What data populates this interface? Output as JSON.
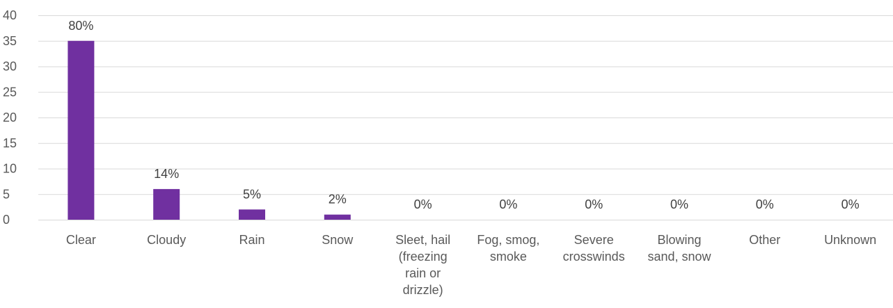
{
  "chart_data": {
    "type": "bar",
    "title": "",
    "xlabel": "",
    "ylabel": "",
    "ylim": [
      0,
      40
    ],
    "ytick_step": 5,
    "grid": true,
    "legend": "none",
    "categories": [
      "Clear",
      "Cloudy",
      "Rain",
      "Snow",
      "Sleet, hail (freezing rain or drizzle)",
      "Fog, smog, smoke",
      "Severe crosswinds",
      "Blowing sand, snow",
      "Other",
      "Unknown"
    ],
    "category_lines": [
      [
        "Clear"
      ],
      [
        "Cloudy"
      ],
      [
        "Rain"
      ],
      [
        "Snow"
      ],
      [
        "Sleet, hail",
        "(freezing",
        "rain or",
        "drizzle)"
      ],
      [
        "Fog, smog,",
        "smoke"
      ],
      [
        "Severe",
        "crosswinds"
      ],
      [
        "Blowing",
        "sand, snow"
      ],
      [
        "Other"
      ],
      [
        "Unknown"
      ]
    ],
    "values": [
      35,
      6,
      2,
      1,
      0,
      0,
      0,
      0,
      0,
      0
    ],
    "data_labels": [
      "80%",
      "14%",
      "5%",
      "2%",
      "0%",
      "0%",
      "0%",
      "0%",
      "0%",
      "0%"
    ],
    "colors": {
      "bar": "#7030a0",
      "grid": "#d9d9d9",
      "axis_text": "#595959",
      "label_text": "#404040"
    }
  }
}
